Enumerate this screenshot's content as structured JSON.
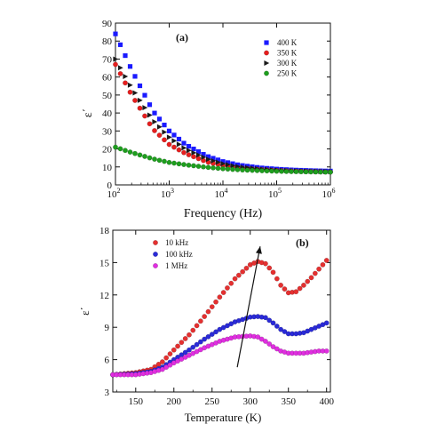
{
  "colors": {
    "k400": "#1a1aff",
    "k350": "#e61e1e",
    "k300": "#1a1a1a",
    "k250": "#1e9e1e",
    "f10k": "#e53030",
    "f100k": "#2a2ad8",
    "f1M": "#e02ee0",
    "axis": "#111111"
  },
  "chart_data": [
    {
      "type": "scatter",
      "panel_label": "(a)",
      "xlabel": "Frequency (Hz)",
      "ylabel": "ε΄",
      "xscale": "log",
      "xlim": [
        100,
        1000000
      ],
      "ylim": [
        0,
        90
      ],
      "yticks": [
        0,
        10,
        20,
        30,
        40,
        50,
        60,
        70,
        80,
        90
      ],
      "xticks": [
        {
          "value": 100,
          "base": "10",
          "exp": "2"
        },
        {
          "value": 1000,
          "base": "10",
          "exp": "3"
        },
        {
          "value": 10000,
          "base": "10",
          "exp": "4"
        },
        {
          "value": 100000,
          "base": "10",
          "exp": "5"
        },
        {
          "value": 1000000,
          "base": "10",
          "exp": "6"
        }
      ],
      "legend_position": "top-right",
      "series": [
        {
          "name": "400 K",
          "marker": "square",
          "color_key": "k400",
          "x": [
            100,
            200,
            500,
            1000,
            2000,
            5000,
            10000,
            20000,
            50000,
            100000,
            200000,
            500000,
            1000000
          ],
          "y": [
            84,
            64,
            41,
            30,
            22.5,
            16,
            13,
            11,
            9.5,
            8.8,
            8.3,
            7.9,
            7.7
          ]
        },
        {
          "name": "350 K",
          "marker": "circle",
          "color_key": "k350",
          "x": [
            100,
            200,
            500,
            1000,
            2000,
            5000,
            10000,
            20000,
            50000,
            100000,
            200000,
            500000,
            1000000
          ],
          "y": [
            67,
            50,
            31,
            22.5,
            17.5,
            12.8,
            10.8,
            9.5,
            8.5,
            8.0,
            7.7,
            7.4,
            7.2
          ]
        },
        {
          "name": "300 K",
          "marker": "triangle-right",
          "color_key": "k300",
          "x": [
            100,
            200,
            500,
            1000,
            2000,
            5000,
            10000,
            20000,
            50000,
            100000,
            200000,
            500000,
            1000000
          ],
          "y": [
            70,
            54,
            36,
            26.5,
            20,
            14.5,
            11.8,
            10,
            8.8,
            8.2,
            7.8,
            7.5,
            7.3
          ]
        },
        {
          "name": "250 K",
          "marker": "circle",
          "color_key": "k250",
          "x": [
            100,
            200,
            500,
            1000,
            2000,
            5000,
            10000,
            20000,
            50000,
            100000,
            200000,
            500000,
            1000000
          ],
          "y": [
            21,
            18,
            14.5,
            12.5,
            11.2,
            9.8,
            9.0,
            8.4,
            7.9,
            7.6,
            7.4,
            7.2,
            7.1
          ]
        }
      ]
    },
    {
      "type": "scatter",
      "panel_label": "(b)",
      "xlabel": "Temperature (K)",
      "ylabel": "ε΄",
      "xlim": [
        120,
        405
      ],
      "ylim": [
        3,
        18
      ],
      "xticks": [
        150,
        200,
        250,
        300,
        350,
        400
      ],
      "yticks": [
        3,
        6,
        9,
        12,
        15,
        18
      ],
      "legend_position": "top-left",
      "annotation": {
        "type": "arrow",
        "from": [
          283,
          5.3
        ],
        "to": [
          313,
          16.5
        ]
      },
      "series": [
        {
          "name": "10 kHz",
          "marker": "circle",
          "color_key": "f10k",
          "x": [
            120,
            150,
            170,
            185,
            200,
            220,
            240,
            260,
            280,
            300,
            310,
            320,
            330,
            340,
            350,
            360,
            370,
            380,
            390,
            400
          ],
          "y": [
            4.6,
            4.8,
            5.1,
            5.8,
            6.9,
            8.3,
            10,
            11.8,
            13.5,
            14.8,
            15.1,
            14.9,
            14.1,
            12.9,
            12.2,
            12.3,
            12.9,
            13.6,
            14.4,
            15.2
          ]
        },
        {
          "name": "100 kHz",
          "marker": "circle",
          "color_key": "f100k",
          "x": [
            120,
            150,
            170,
            185,
            200,
            220,
            240,
            260,
            280,
            300,
            310,
            320,
            330,
            340,
            350,
            360,
            370,
            380,
            390,
            400
          ],
          "y": [
            4.6,
            4.7,
            4.9,
            5.3,
            6.0,
            6.9,
            7.9,
            8.8,
            9.5,
            9.95,
            10.0,
            9.9,
            9.4,
            8.8,
            8.4,
            8.4,
            8.5,
            8.8,
            9.1,
            9.4
          ]
        },
        {
          "name": "1 MHz",
          "marker": "circle",
          "color_key": "f1M",
          "x": [
            120,
            150,
            170,
            185,
            200,
            220,
            240,
            260,
            280,
            300,
            310,
            320,
            330,
            340,
            350,
            360,
            370,
            380,
            390,
            400
          ],
          "y": [
            4.6,
            4.6,
            4.8,
            5.1,
            5.7,
            6.4,
            7.1,
            7.7,
            8.1,
            8.2,
            8.1,
            7.7,
            7.2,
            6.8,
            6.6,
            6.6,
            6.6,
            6.7,
            6.8,
            6.8
          ]
        }
      ]
    }
  ]
}
